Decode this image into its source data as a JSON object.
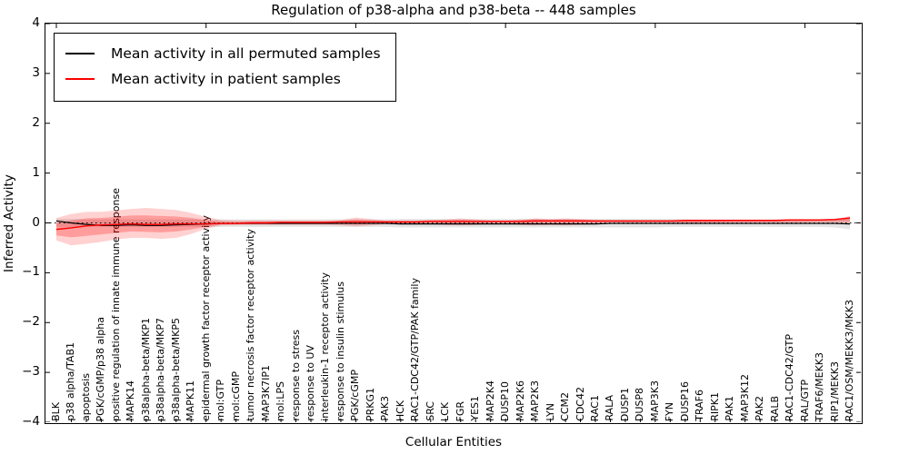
{
  "chart_data": {
    "type": "line",
    "title": "Regulation of p38-alpha and p38-beta -- 448 samples",
    "xlabel": "Cellular Entities",
    "ylabel": "Inferred Activity",
    "ylim": [
      -4,
      4
    ],
    "grid": false,
    "legend_position": "upper-left",
    "yticks": [
      "4",
      "3",
      "2",
      "1",
      "0",
      "−1",
      "−2",
      "−3",
      "−4"
    ],
    "ytick_values": [
      4,
      3,
      2,
      1,
      0,
      -1,
      -2,
      -3,
      -4
    ],
    "top_tick_indices": [
      0,
      10,
      20,
      30,
      40,
      50
    ],
    "categories": [
      "BLK",
      "p38 alpha/TAB1",
      "apoptosis",
      "PGK/cGMP/p38 alpha",
      "positive regulation of innate immune response",
      "MAPK14",
      "p38alpha-beta/MKP1",
      "p38alpha-beta/MKP7",
      "p38alpha-beta/MKP5",
      "MAPK11",
      "epidermal growth factor receptor activity",
      "mol:GTP",
      "mol:cGMP",
      "tumor necrosis factor receptor activity",
      "MAP3K7IP1",
      "mol:LPS",
      "response to stress",
      "response to UV",
      "interleukin-1 receptor activity",
      "response to insulin stimulus",
      "PGK/cGMP",
      "PRKG1",
      "PAK3",
      "HCK",
      "RAC1-CDC42/GTP/PAK family",
      "SRC",
      "LCK",
      "FGR",
      "YES1",
      "MAP2K4",
      "DUSP10",
      "MAP2K6",
      "MAP2K3",
      "LYN",
      "CCM2",
      "CDC42",
      "RAC1",
      "RALA",
      "DUSP1",
      "DUSP8",
      "MAP3K3",
      "FYN",
      "DUSP16",
      "TRAF6",
      "RIPK1",
      "PAK1",
      "MAP3K12",
      "PAK2",
      "RALB",
      "RAC1-CDC42/GTP",
      "RAL/GTP",
      "TRAF6/MEKK3",
      "RIP1/MEKK3",
      "RAC1/OSM/MEKK3/MKK3"
    ],
    "legend": [
      {
        "label": "Mean activity in all permuted samples",
        "color": "#000000"
      },
      {
        "label": "Mean activity in patient samples",
        "color": "#ff0000"
      }
    ],
    "series": [
      {
        "name": "Mean activity in all permuted samples",
        "color": "#000000",
        "width": 1.2,
        "values": [
          0.04,
          0.0,
          -0.03,
          -0.05,
          -0.05,
          -0.04,
          -0.05,
          -0.05,
          -0.04,
          -0.03,
          -0.02,
          -0.01,
          -0.01,
          -0.01,
          -0.01,
          -0.01,
          -0.01,
          -0.01,
          -0.01,
          -0.01,
          -0.01,
          -0.01,
          -0.01,
          -0.02,
          -0.02,
          -0.02,
          -0.02,
          -0.02,
          -0.02,
          -0.02,
          -0.02,
          -0.02,
          -0.02,
          -0.02,
          -0.02,
          -0.02,
          -0.02,
          -0.01,
          -0.01,
          -0.01,
          -0.01,
          -0.01,
          -0.01,
          -0.01,
          -0.01,
          -0.01,
          -0.01,
          -0.01,
          -0.01,
          -0.01,
          -0.01,
          -0.01,
          -0.01,
          -0.02
        ]
      },
      {
        "name": "Mean activity in patient samples",
        "color": "#ff0000",
        "width": 1.4,
        "values": [
          -0.13,
          -0.1,
          -0.06,
          -0.04,
          -0.03,
          -0.02,
          -0.03,
          -0.03,
          -0.02,
          -0.02,
          -0.02,
          -0.01,
          -0.01,
          0.0,
          0.0,
          0.01,
          0.01,
          0.01,
          0.01,
          0.02,
          0.02,
          0.02,
          0.02,
          0.02,
          0.02,
          0.03,
          0.03,
          0.03,
          0.03,
          0.03,
          0.03,
          0.03,
          0.04,
          0.04,
          0.04,
          0.04,
          0.04,
          0.04,
          0.04,
          0.04,
          0.04,
          0.04,
          0.05,
          0.05,
          0.05,
          0.05,
          0.05,
          0.05,
          0.05,
          0.06,
          0.06,
          0.06,
          0.07,
          0.1
        ]
      }
    ],
    "bands": [
      {
        "name": "permuted-range",
        "color": "rgba(0,0,0,0.10)",
        "upper": [
          0.08,
          0.08,
          0.07,
          0.07,
          0.07,
          0.07,
          0.07,
          0.07,
          0.07,
          0.07,
          0.07,
          0.07,
          0.07,
          0.07,
          0.07,
          0.07,
          0.07,
          0.07,
          0.07,
          0.07,
          0.07,
          0.07,
          0.07,
          0.08,
          0.08,
          0.08,
          0.08,
          0.08,
          0.08,
          0.08,
          0.08,
          0.08,
          0.08,
          0.08,
          0.08,
          0.08,
          0.08,
          0.08,
          0.08,
          0.08,
          0.08,
          0.08,
          0.07,
          0.07,
          0.07,
          0.07,
          0.07,
          0.07,
          0.07,
          0.07,
          0.07,
          0.07,
          0.08,
          0.11
        ],
        "lower": [
          -0.08,
          -0.08,
          -0.08,
          -0.08,
          -0.08,
          -0.08,
          -0.08,
          -0.08,
          -0.08,
          -0.08,
          -0.08,
          -0.08,
          -0.08,
          -0.08,
          -0.08,
          -0.08,
          -0.08,
          -0.08,
          -0.08,
          -0.08,
          -0.08,
          -0.08,
          -0.08,
          -0.09,
          -0.09,
          -0.09,
          -0.09,
          -0.09,
          -0.09,
          -0.09,
          -0.09,
          -0.09,
          -0.09,
          -0.09,
          -0.09,
          -0.09,
          -0.09,
          -0.09,
          -0.09,
          -0.09,
          -0.09,
          -0.08,
          -0.08,
          -0.08,
          -0.08,
          -0.08,
          -0.08,
          -0.08,
          -0.08,
          -0.08,
          -0.08,
          -0.08,
          -0.09,
          -0.13
        ]
      },
      {
        "name": "patient-range-outer",
        "color": "rgba(255,0,0,0.18)",
        "upper": [
          0.1,
          0.18,
          0.22,
          0.22,
          0.25,
          0.28,
          0.3,
          0.28,
          0.26,
          0.2,
          0.12,
          0.06,
          0.05,
          0.05,
          0.05,
          0.05,
          0.05,
          0.05,
          0.05,
          0.06,
          0.11,
          0.08,
          0.05,
          0.05,
          0.05,
          0.06,
          0.07,
          0.09,
          0.07,
          0.05,
          0.05,
          0.07,
          0.09,
          0.08,
          0.09,
          0.08,
          0.06,
          0.05,
          0.05,
          0.05,
          0.05,
          0.05,
          0.05,
          0.05,
          0.05,
          0.05,
          0.05,
          0.05,
          0.05,
          0.06,
          0.06,
          0.06,
          0.07,
          0.14
        ],
        "lower": [
          -0.35,
          -0.45,
          -0.42,
          -0.38,
          -0.33,
          -0.3,
          -0.3,
          -0.32,
          -0.3,
          -0.22,
          -0.12,
          -0.05,
          -0.04,
          -0.04,
          -0.04,
          -0.04,
          -0.04,
          -0.04,
          -0.04,
          -0.05,
          -0.07,
          -0.05,
          -0.03,
          -0.03,
          -0.03,
          -0.03,
          -0.04,
          -0.05,
          -0.04,
          -0.03,
          -0.03,
          -0.04,
          -0.05,
          -0.04,
          -0.05,
          -0.04,
          -0.03,
          -0.02,
          -0.02,
          -0.02,
          -0.02,
          -0.02,
          -0.02,
          -0.02,
          -0.02,
          -0.01,
          -0.01,
          -0.01,
          -0.01,
          -0.01,
          -0.01,
          0.0,
          0.0,
          -0.02
        ]
      },
      {
        "name": "patient-range-inner",
        "color": "rgba(255,0,0,0.25)",
        "upper": [
          0.0,
          0.05,
          0.09,
          0.1,
          0.12,
          0.15,
          0.15,
          0.14,
          0.13,
          0.1,
          0.06,
          0.03,
          0.02,
          0.03,
          0.03,
          0.03,
          0.03,
          0.03,
          0.03,
          0.04,
          0.07,
          0.05,
          0.04,
          0.04,
          0.04,
          0.05,
          0.05,
          0.06,
          0.05,
          0.04,
          0.04,
          0.05,
          0.07,
          0.06,
          0.07,
          0.06,
          0.05,
          0.05,
          0.05,
          0.05,
          0.05,
          0.05,
          0.05,
          0.05,
          0.05,
          0.05,
          0.05,
          0.05,
          0.05,
          0.06,
          0.06,
          0.06,
          0.07,
          0.12
        ],
        "lower": [
          -0.25,
          -0.29,
          -0.26,
          -0.23,
          -0.2,
          -0.17,
          -0.18,
          -0.19,
          -0.17,
          -0.13,
          -0.08,
          -0.03,
          -0.03,
          -0.02,
          -0.02,
          -0.02,
          -0.02,
          -0.02,
          -0.02,
          -0.02,
          -0.03,
          -0.02,
          -0.01,
          -0.01,
          -0.01,
          0.0,
          -0.01,
          -0.01,
          -0.01,
          0.0,
          0.0,
          -0.01,
          -0.01,
          0.0,
          -0.01,
          0.0,
          0.0,
          0.01,
          0.01,
          0.01,
          0.01,
          0.01,
          0.01,
          0.01,
          0.01,
          0.02,
          0.02,
          0.02,
          0.02,
          0.02,
          0.02,
          0.03,
          0.03,
          0.03
        ]
      }
    ],
    "zero_line": {
      "value": 0,
      "style": "dotted",
      "color": "#000000"
    }
  }
}
